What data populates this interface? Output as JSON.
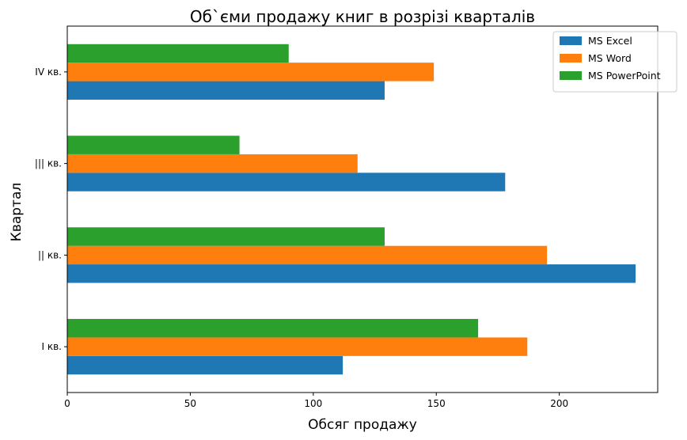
{
  "chart_data": {
    "type": "bar",
    "orientation": "horizontal",
    "title": "Об`єми продажу книг в розрізі кварталів",
    "xlabel": "Обсяг продажу",
    "ylabel": "Квартал",
    "categories": [
      "I кв.",
      "|| кв.",
      "||| кв.",
      "IV кв."
    ],
    "xlim": [
      0,
      240
    ],
    "xticks": [
      0,
      50,
      100,
      150,
      200
    ],
    "series": [
      {
        "name": "MS Excel",
        "color": "#1f77b4",
        "values": [
          112,
          231,
          178,
          129
        ]
      },
      {
        "name": "MS Word",
        "color": "#ff7f0e",
        "values": [
          187,
          195,
          118,
          149
        ]
      },
      {
        "name": "MS PowerPoint",
        "color": "#2ca02c",
        "values": [
          167,
          129,
          70,
          90
        ]
      }
    ],
    "grid": false,
    "legend": "top-right"
  }
}
